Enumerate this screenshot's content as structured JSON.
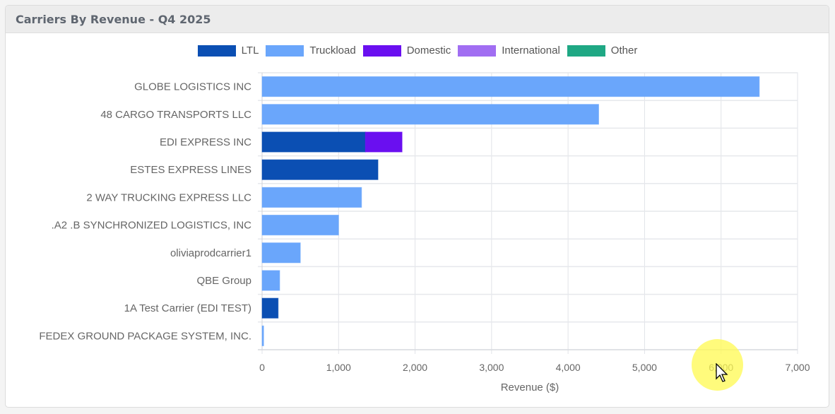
{
  "panel": {
    "title": "Carriers By Revenue - Q4 2025"
  },
  "chart_data": {
    "type": "bar",
    "orientation": "horizontal",
    "stacked": true,
    "title": "Carriers By Revenue - Q4 2025",
    "xlabel": "Revenue ($)",
    "ylabel": "",
    "xlim": [
      0,
      7000
    ],
    "xticks": [
      0,
      1000,
      2000,
      3000,
      4000,
      5000,
      6000,
      7000
    ],
    "xtick_labels": [
      "0",
      "1,000",
      "2,000",
      "3,000",
      "4,000",
      "5,000",
      "6,000",
      "7,000"
    ],
    "grid": true,
    "legend_position": "top-center",
    "categories": [
      "GLOBE LOGISTICS INC",
      "48 CARGO TRANSPORTS LLC",
      "EDI EXPRESS INC",
      "ESTES EXPRESS LINES",
      "2 WAY TRUCKING EXPRESS LLC",
      ".A2 .B SYNCHRONIZED LOGISTICS, INC",
      "oliviaprodcarrier1",
      "QBE Group",
      "1A Test Carrier (EDI TEST)",
      "FEDEX GROUND PACKAGE SYSTEM, INC."
    ],
    "series": [
      {
        "name": "LTL",
        "color": "#0b4fb3",
        "values": [
          0,
          0,
          1350,
          1515,
          0,
          0,
          0,
          0,
          210,
          0
        ]
      },
      {
        "name": "Truckload",
        "color": "#6aa6fb",
        "values": [
          6500,
          4400,
          0,
          0,
          1300,
          1000,
          500,
          230,
          0,
          20
        ]
      },
      {
        "name": "Domestic",
        "color": "#6a0ff0",
        "values": [
          0,
          0,
          480,
          0,
          0,
          0,
          0,
          0,
          0,
          0
        ]
      },
      {
        "name": "International",
        "color": "#a16ef2",
        "values": [
          0,
          0,
          0,
          0,
          0,
          0,
          0,
          0,
          0,
          0
        ]
      },
      {
        "name": "Other",
        "color": "#1fa884",
        "values": [
          0,
          0,
          0,
          0,
          0,
          0,
          0,
          0,
          0,
          0
        ]
      }
    ]
  }
}
